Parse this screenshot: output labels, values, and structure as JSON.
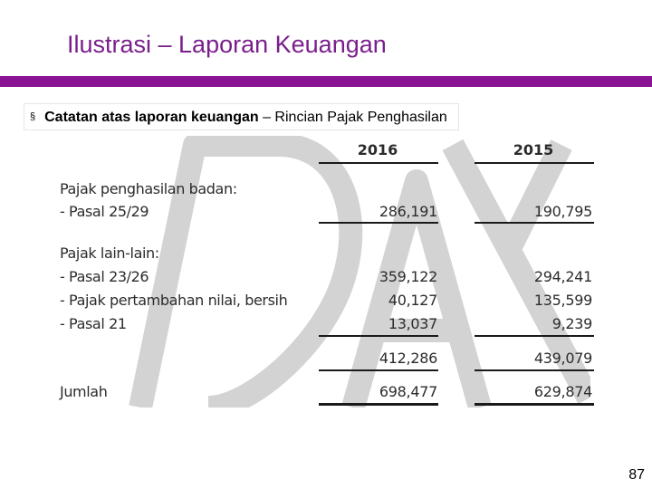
{
  "slide": {
    "title": "Ilustrasi – Laporan Keuangan",
    "subtitle_bold": "Catatan atas laporan keuangan",
    "subtitle_rest": " – Rincian Pajak Penghasilan",
    "bullet": "§",
    "page_number": "87"
  },
  "table": {
    "years": [
      "2016",
      "2015"
    ],
    "rows": [
      {
        "label": "Pajak penghasilan badan:",
        "v2016": "",
        "v2015": ""
      },
      {
        "label": "- Pasal 25/29",
        "v2016": "286,191",
        "v2015": "190,795"
      },
      {
        "label": "Pajak lain-lain:",
        "v2016": "",
        "v2015": ""
      },
      {
        "label": "- Pasal 23/26",
        "v2016": "359,122",
        "v2015": "294,241"
      },
      {
        "label": "- Pajak pertambahan nilai, bersih",
        "v2016": "40,127",
        "v2015": "135,599"
      },
      {
        "label": "- Pasal 21",
        "v2016": "13,037",
        "v2015": "9,239"
      },
      {
        "label": "",
        "v2016": "412,286",
        "v2015": "439,079"
      },
      {
        "label": "Jumlah",
        "v2016": "698,477",
        "v2015": "629,874"
      }
    ]
  },
  "colors": {
    "title": "#7a1f8c",
    "rule": "#8a1394",
    "watermark": "#d0d0d0"
  }
}
